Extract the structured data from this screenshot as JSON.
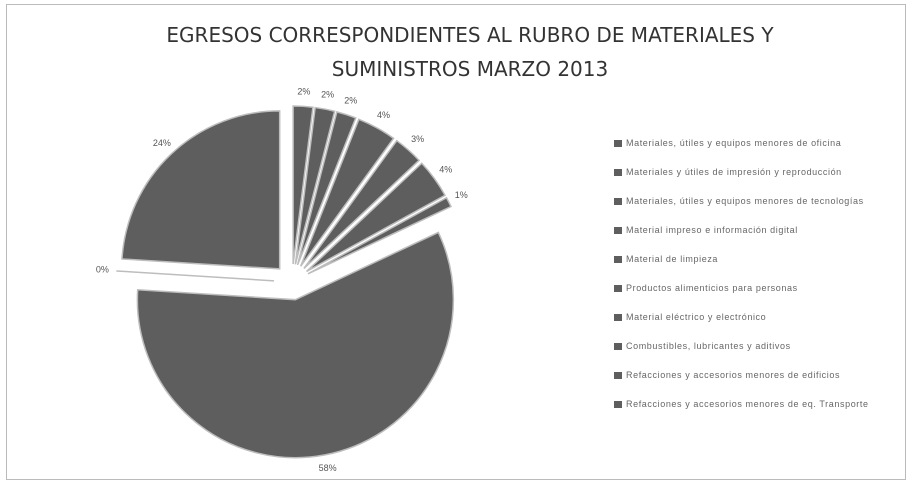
{
  "chart_data": {
    "type": "pie",
    "title": "EGRESOS CORRESPONDIENTES AL RUBRO DE MATERIALES Y SUMINISTROS MARZO 2013",
    "categories": [
      "Materiales, útiles y equipos menores de oficina",
      "Materiales y útiles de impresión y reproducción",
      "Materiales, útiles y equipos menores de tecnologías",
      "Material impreso e información digital",
      "Material de limpieza",
      "Productos alimenticios para personas",
      "Material eléctrico y electrónico",
      "Combustibles, lubricantes y aditivos",
      "Refacciones y accesorios menores de edificios",
      "Refacciones y accesorios menores de eq. Transporte"
    ],
    "values": [
      2,
      2,
      2,
      4,
      3,
      4,
      1,
      58,
      0,
      24
    ],
    "value_labels": [
      "2%",
      "2%",
      "2%",
      "4%",
      "3%",
      "4%",
      "1%",
      "58%",
      "0%",
      "24%"
    ],
    "color": "#5e5e5e",
    "legend": "right"
  }
}
